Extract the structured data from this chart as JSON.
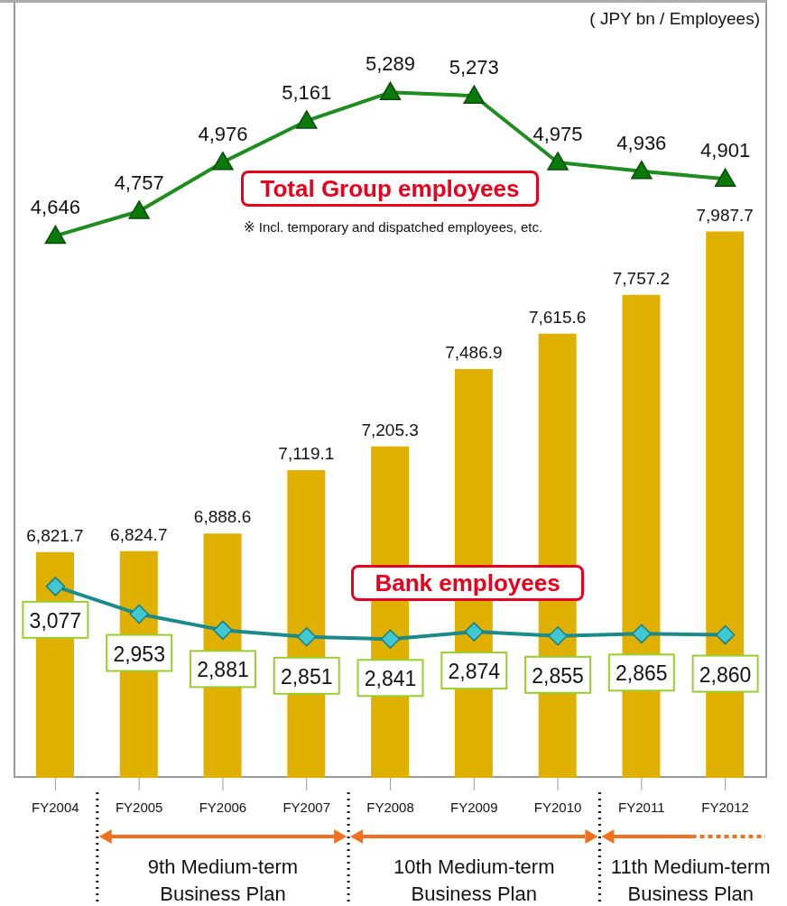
{
  "chart_data": {
    "type": "bar",
    "categories": [
      "FY2004",
      "FY2005",
      "FY2006",
      "FY2007",
      "FY2008",
      "FY2009",
      "FY2010",
      "FY2011",
      "FY2012"
    ],
    "series": [
      {
        "color": "#e0b000",
        "values": [
          6821.7,
          6824.7,
          6888.6,
          7119.1,
          7205.3,
          7486.9,
          7615.6,
          7757.2,
          7987.7
        ],
        "value_labels": [
          "6,821.7",
          "6,824.7",
          "6,888.6",
          "7,119.1",
          "7,205.3",
          "7,486.9",
          "7,615.6",
          "7,757.2",
          "7,987.7"
        ]
      },
      {
        "name": "Total Group employees",
        "type": "line",
        "axis": "y2",
        "color": "#1e8c1e",
        "marker": "triangle",
        "values": [
          4646,
          4757,
          4976,
          5161,
          5289,
          5273,
          4975,
          4936,
          4901
        ],
        "value_labels": [
          "4,646",
          "4,757",
          "4,976",
          "5,161",
          "5,289",
          "5,273",
          "4,975",
          "4,936",
          "4,901"
        ]
      },
      {
        "name": "Bank employees",
        "type": "line",
        "axis": "y2",
        "color": "#1a8a8a",
        "marker": "diamond",
        "values": [
          3077,
          2953,
          2881,
          2851,
          2841,
          2874,
          2855,
          2865,
          2860
        ],
        "value_labels": [
          "3,077",
          "2,953",
          "2,881",
          "2,851",
          "2,841",
          "2,874",
          "2,855",
          "2,865",
          "2,860"
        ]
      }
    ],
    "ylim": [
      6000,
      8820
    ],
    "y2lim": [
      2220,
      5690
    ],
    "tick_labels": "x",
    "legend": false,
    "grid": false,
    "annotations": [
      "( JPY bn / Employees)",
      "※ Incl. temporary and dispatched employees, etc.",
      "9th Medium-term Business Plan",
      "10th Medium-term Business Plan",
      "11th Medium-term Business Plan"
    ]
  }
}
